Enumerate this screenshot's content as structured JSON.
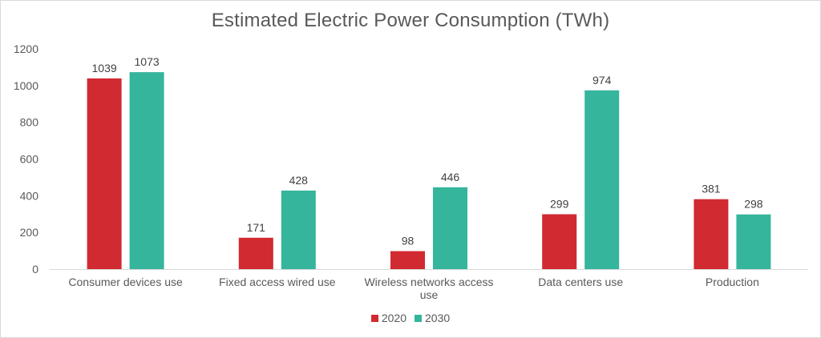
{
  "chart_data": {
    "type": "bar",
    "title": "Estimated Electric Power Consumption (TWh)",
    "xlabel": "",
    "ylabel": "",
    "ylim": [
      0,
      1200
    ],
    "yticks": [
      0,
      200,
      400,
      600,
      800,
      1000,
      1200
    ],
    "categories": [
      [
        "Consumer devices use"
      ],
      [
        "Fixed access wired use"
      ],
      [
        "Wireless networks access",
        "use"
      ],
      [
        "Data centers use"
      ],
      [
        "Production"
      ]
    ],
    "series": [
      {
        "name": "2020",
        "color": "#d12a31",
        "values": [
          1039,
          171,
          98,
          299,
          381
        ]
      },
      {
        "name": "2030",
        "color": "#35b59c",
        "values": [
          1073,
          428,
          446,
          974,
          298
        ]
      }
    ],
    "grid": false,
    "legend": "bottom-center",
    "data_labels": true
  }
}
